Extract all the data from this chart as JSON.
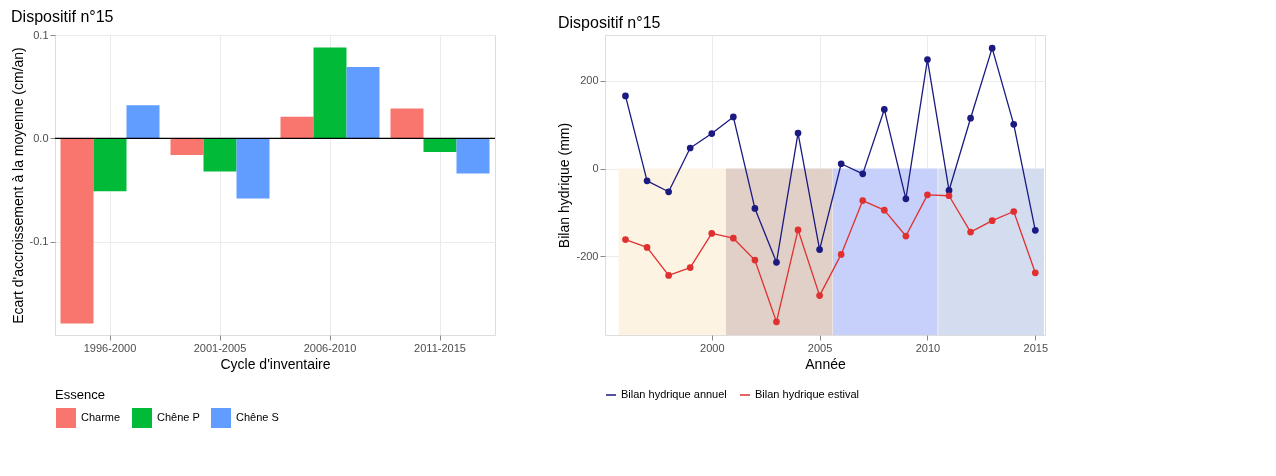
{
  "chart_data": [
    {
      "type": "bar",
      "title": "Dispositif n°15",
      "xlabel": "Cycle d'inventaire",
      "ylabel": "Ecart d'accroissement à la moyenne (cm/an)",
      "legend_title": "Essence",
      "categories": [
        "1996-2000",
        "2001-2005",
        "2006-2010",
        "2011-2015"
      ],
      "series": [
        {
          "name": "Charme",
          "color": "#f8766d",
          "values": [
            -0.179,
            -0.016,
            0.021,
            0.029
          ]
        },
        {
          "name": "Chêne P",
          "color": "#00ba38",
          "values": [
            -0.051,
            -0.032,
            0.088,
            -0.013
          ]
        },
        {
          "name": "Chêne S",
          "color": "#619cff",
          "values": [
            0.032,
            -0.058,
            0.069,
            -0.034
          ]
        }
      ],
      "ylim": [
        -0.19,
        0.1
      ],
      "yticks": [
        -0.1,
        {
          "value": 0,
          "label": "0.0"
        },
        0.1
      ],
      "ref_lines": [
        {
          "axis": "y",
          "value": 0,
          "color": "#000000"
        }
      ],
      "grid": true,
      "legend": "bottom"
    },
    {
      "type": "line",
      "title": "Dispositif n°15",
      "xlabel": "Année",
      "ylabel": "Bilan hydrique (mm)",
      "x": [
        1996,
        1997,
        1998,
        1999,
        2000,
        2001,
        2002,
        2003,
        2004,
        2005,
        2006,
        2007,
        2008,
        2009,
        2010,
        2011,
        2012,
        2013,
        2014,
        2015
      ],
      "series": [
        {
          "name": "Bilan hydrique annuel",
          "color": "#1a1a80",
          "values": [
            166,
            -28,
            -53,
            47,
            80,
            118,
            -91,
            -214,
            81,
            -185,
            11,
            -12,
            135,
            -69,
            249,
            -50,
            115,
            275,
            101,
            -141
          ]
        },
        {
          "name": "Bilan hydrique estival",
          "color": "#e03030",
          "values": [
            -162,
            -180,
            -244,
            -226,
            -148,
            -159,
            -209,
            -350,
            -140,
            -290,
            -196,
            -73,
            -95,
            -154,
            -60,
            -62,
            -145,
            -119,
            -98,
            -238
          ]
        }
      ],
      "marker": "circle",
      "xlim": [
        1995.05,
        2015.45
      ],
      "xticks": [
        2000,
        2005,
        2010,
        2015
      ],
      "ylim": [
        -380,
        305
      ],
      "yticks": [
        -200,
        0,
        200
      ],
      "bands": [
        {
          "axis": "x",
          "from": 1995.68,
          "to": 2000.63,
          "color": "#fdf3e3"
        },
        {
          "axis": "x",
          "from": 2000.65,
          "to": 2005.6,
          "color": "#e0d0c8"
        },
        {
          "axis": "x",
          "from": 2005.62,
          "to": 2010.47,
          "color": "#c6d0fa"
        },
        {
          "axis": "x",
          "from": 2010.5,
          "to": 2015.4,
          "color": "#d4dcef"
        }
      ],
      "grid": true,
      "legend": "bottom"
    }
  ]
}
